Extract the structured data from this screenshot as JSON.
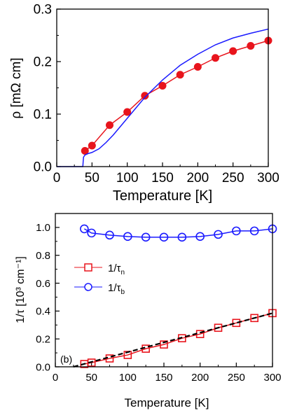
{
  "colors": {
    "red": "#e8141c",
    "blue": "#1a1aff",
    "black": "#000000"
  },
  "chart_data": [
    {
      "type": "line",
      "xlabel": "Temperature [K]",
      "ylabel": "ρ [mΩ cm]",
      "xlim": [
        0,
        300
      ],
      "ylim": [
        0,
        0.3
      ],
      "xticks": [
        0,
        50,
        100,
        150,
        200,
        250,
        300
      ],
      "xtick_labels": [
        "0",
        "50",
        "100",
        "150",
        "200",
        "250",
        "300"
      ],
      "yticks": [
        0,
        0.1,
        0.2,
        0.3
      ],
      "ytick_labels": [
        "0.0",
        "0.1",
        "0.2",
        "0.3"
      ],
      "grid": false,
      "series": [
        {
          "marker": "filled-circle",
          "color": "#e8141c",
          "x": [
            40,
            50,
            75,
            100,
            125,
            150,
            175,
            200,
            225,
            250,
            275,
            300
          ],
          "y": [
            0.03,
            0.04,
            0.079,
            0.104,
            0.135,
            0.154,
            0.175,
            0.19,
            0.207,
            0.22,
            0.23,
            0.24
          ]
        },
        {
          "marker": "none",
          "color": "#1a1aff",
          "x": [
            0,
            37,
            37.5,
            38,
            40,
            45,
            50,
            60,
            70,
            80,
            90,
            100,
            110,
            125,
            150,
            175,
            200,
            225,
            250,
            275,
            300
          ],
          "y": [
            0,
            0,
            0.01,
            0.018,
            0.022,
            0.025,
            0.027,
            0.034,
            0.046,
            0.06,
            0.076,
            0.092,
            0.108,
            0.132,
            0.165,
            0.193,
            0.214,
            0.232,
            0.245,
            0.254,
            0.262
          ]
        }
      ]
    },
    {
      "type": "line",
      "xlabel": "Temperature [K]",
      "ylabel": "1/τ [10³ cm⁻¹]",
      "xlim": [
        0,
        300
      ],
      "ylim": [
        0,
        1.1
      ],
      "xticks": [
        0,
        50,
        100,
        150,
        200,
        250,
        300
      ],
      "xtick_labels": [
        "0",
        "50",
        "100",
        "150",
        "200",
        "250",
        "300"
      ],
      "yticks": [
        0,
        0.2,
        0.4,
        0.6,
        0.8,
        1.0
      ],
      "ytick_labels": [
        "0.0",
        "0.2",
        "0.4",
        "0.6",
        "0.8",
        "1.0"
      ],
      "grid": false,
      "annotation": "(b)",
      "legend_position": "center-left",
      "series": [
        {
          "name": "1/τn",
          "marker": "open-square",
          "color": "#e8141c",
          "x": [
            40,
            50,
            75,
            100,
            125,
            150,
            175,
            200,
            225,
            250,
            275,
            300
          ],
          "y": [
            0.02,
            0.03,
            0.06,
            0.085,
            0.13,
            0.16,
            0.205,
            0.235,
            0.28,
            0.315,
            0.35,
            0.385
          ]
        },
        {
          "name": "1/τb",
          "marker": "open-circle",
          "color": "#1a1aff",
          "x": [
            40,
            50,
            75,
            100,
            125,
            150,
            175,
            200,
            225,
            250,
            275,
            300
          ],
          "y": [
            0.99,
            0.96,
            0.945,
            0.935,
            0.93,
            0.93,
            0.93,
            0.935,
            0.95,
            0.975,
            0.975,
            0.99
          ]
        },
        {
          "marker": "none",
          "style": "dashed",
          "color": "#000000",
          "x": [
            25,
            300
          ],
          "y": [
            0.0,
            0.385
          ]
        }
      ]
    }
  ]
}
